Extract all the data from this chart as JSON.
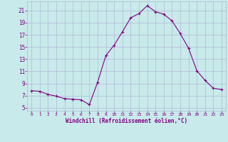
{
  "x": [
    0,
    1,
    2,
    3,
    4,
    5,
    6,
    7,
    8,
    9,
    10,
    11,
    12,
    13,
    14,
    15,
    16,
    17,
    18,
    19,
    20,
    21,
    22,
    23
  ],
  "y": [
    7.8,
    7.7,
    7.2,
    6.9,
    6.5,
    6.4,
    6.3,
    5.5,
    9.2,
    13.6,
    15.3,
    17.5,
    19.8,
    20.5,
    21.8,
    20.8,
    20.4,
    19.3,
    17.2,
    14.8,
    11.1,
    9.5,
    8.2,
    8.0
  ],
  "line_color": "#800080",
  "marker": "+",
  "bg_color": "#c8eaea",
  "grid_color": "#b0b8d8",
  "xlabel": "Windchill (Refroidissement éolien,°C)",
  "xlabel_color": "#800080",
  "tick_color": "#800080",
  "ylim": [
    4.5,
    22.5
  ],
  "xlim": [
    -0.5,
    23.5
  ],
  "yticks": [
    5,
    7,
    9,
    11,
    13,
    15,
    17,
    19,
    21
  ],
  "xticks": [
    0,
    1,
    2,
    3,
    4,
    5,
    6,
    7,
    8,
    9,
    10,
    11,
    12,
    13,
    14,
    15,
    16,
    17,
    18,
    19,
    20,
    21,
    22,
    23
  ],
  "figsize": [
    3.2,
    2.0
  ],
  "dpi": 100
}
